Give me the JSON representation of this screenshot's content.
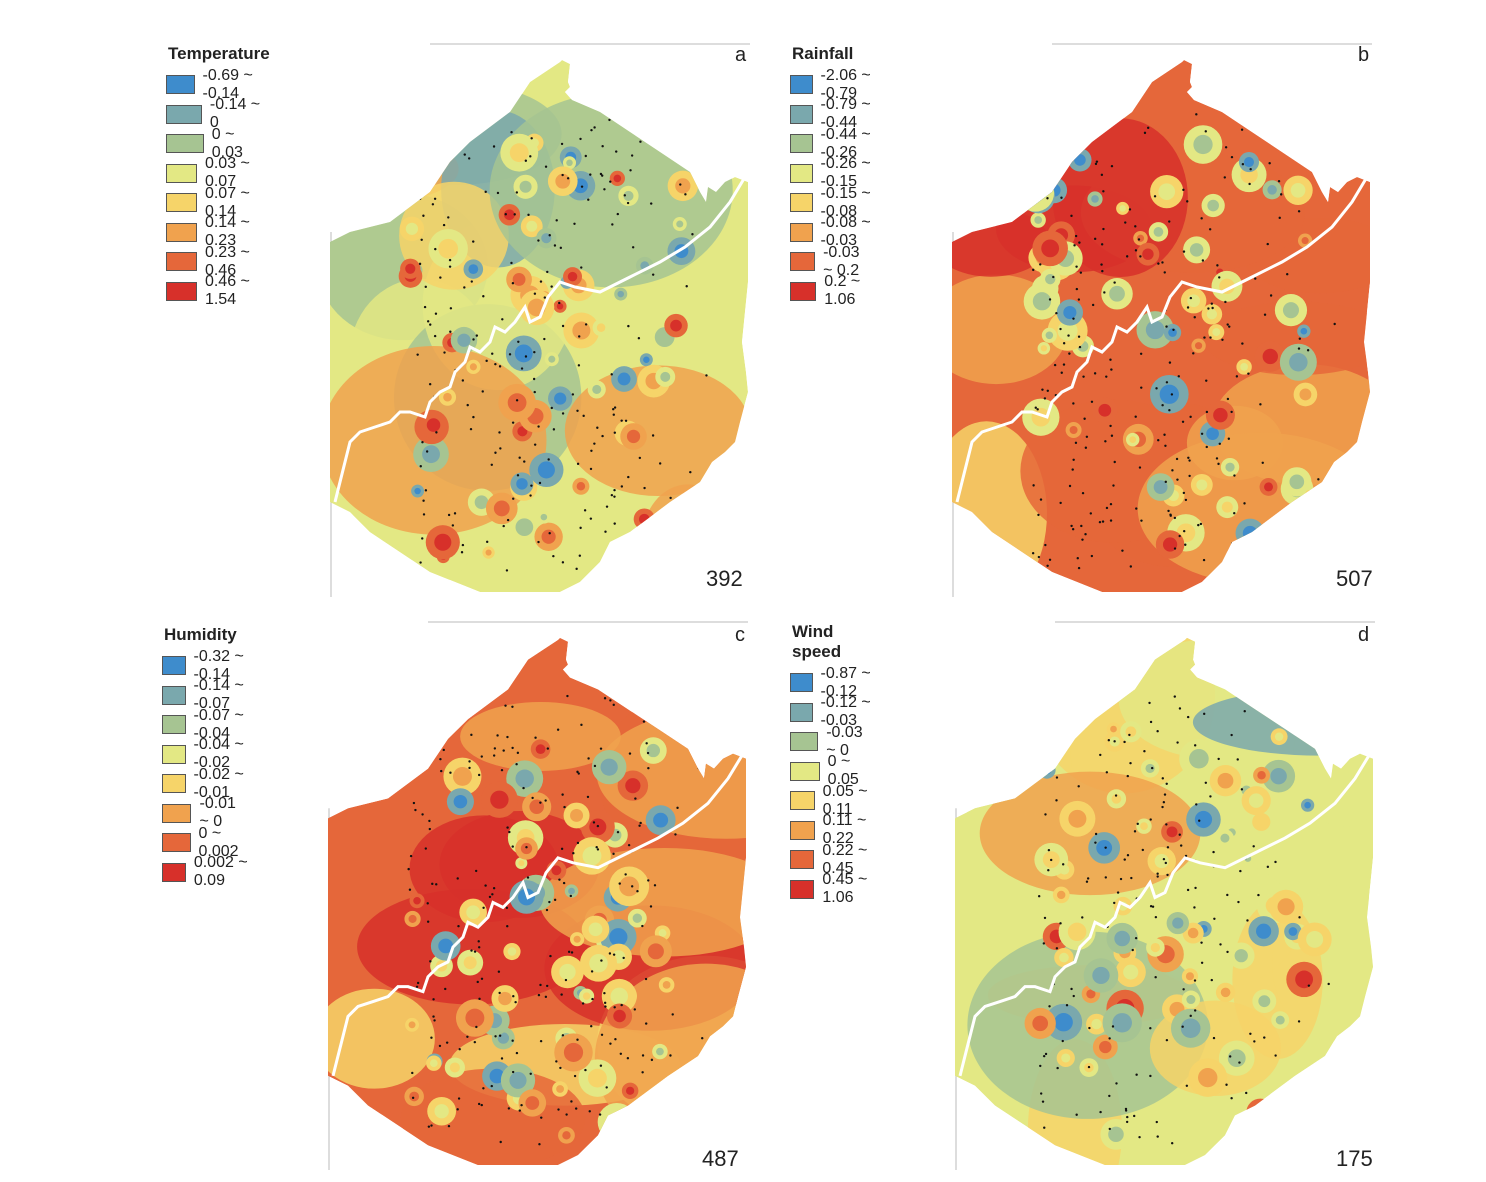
{
  "palette": [
    "#3e8ccc",
    "#7aa8ad",
    "#a6c492",
    "#e3e884",
    "#f6d469",
    "#f0a24e",
    "#e5673a",
    "#d7302a"
  ],
  "panels": [
    {
      "id": "a",
      "title": "Temperature",
      "letter": "a",
      "count": "392",
      "classes": [
        "-0.69 ~ -0.14",
        "-0.14 ~ 0",
        "0 ~ 0.03",
        "0.03 ~ 0.07",
        "0.07 ~ 0.14",
        "0.14 ~ 0.23",
        "0.23 ~ 0.46",
        "0.46 ~ 1.54"
      ],
      "base_class": 3
    },
    {
      "id": "b",
      "title": "Rainfall",
      "letter": "b",
      "count": "507",
      "classes": [
        "-2.06 ~ -0.79",
        "-0.79 ~ -0.44",
        "-0.44 ~ -0.26",
        "-0.26 ~ -0.15",
        "-0.15 ~ -0.08",
        "-0.08 ~ -0.03",
        "-0.03 ~ 0.2",
        "0.2 ~ 1.06"
      ],
      "base_class": 6
    },
    {
      "id": "c",
      "title": "Humidity",
      "letter": "c",
      "count": "487",
      "classes": [
        "-0.32 ~ -0.14",
        "-0.14 ~ -0.07",
        "-0.07 ~ -0.04",
        "-0.04 ~ -0.02",
        "-0.02 ~ -0.01",
        "-0.01 ~ 0",
        "0 ~ 0.002",
        "0.002 ~ 0.09"
      ],
      "base_class": 6
    },
    {
      "id": "d",
      "title": "Wind speed",
      "letter": "d",
      "count": "175",
      "classes": [
        "-0.87 ~ -0.12",
        "-0.12 ~ -0.03",
        "-0.03 ~ 0",
        "0 ~ 0.05",
        "0.05 ~ 0.11",
        "0.11 ~ 0.22",
        "0.22 ~ 0.45",
        "0.45 ~ 1.06"
      ],
      "base_class": 3
    }
  ]
}
